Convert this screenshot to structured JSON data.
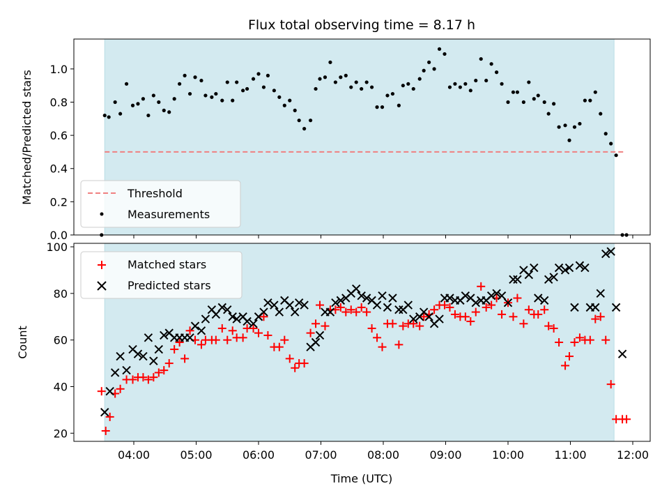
{
  "chart_data": {
    "title": "Flux total observing time = 8.17 h",
    "xlabel": "Time (UTC)",
    "x_ticks": [
      "04:00",
      "05:00",
      "06:00",
      "07:00",
      "08:00",
      "09:00",
      "10:00",
      "11:00",
      "12:00"
    ],
    "shaded_interval": {
      "start": "03:32",
      "end": "11:42",
      "color": "#d3eaf0"
    },
    "panels": [
      {
        "type": "scatter",
        "ylabel": "Matched/Predicted stars",
        "ylim": [
          0,
          1.18
        ],
        "y_ticks": [
          "0.0",
          "0.2",
          "0.4",
          "0.6",
          "0.8",
          "1.0"
        ],
        "legend_position": "lower-left",
        "series": [
          {
            "name": "Threshold",
            "kind": "dashed-line",
            "color": "#f08080",
            "y": 0.5,
            "x_range": [
              "03:32",
              "11:52"
            ]
          },
          {
            "name": "Measurements",
            "kind": "dots",
            "color": "#000000",
            "x": [
              "03:29",
              "03:32",
              "03:36",
              "03:42",
              "03:47",
              "03:53",
              "03:59",
              "04:04",
              "04:09",
              "04:14",
              "04:19",
              "04:24",
              "04:29",
              "04:34",
              "04:39",
              "04:44",
              "04:49",
              "04:54",
              "04:59",
              "05:05",
              "05:09",
              "05:15",
              "05:19",
              "05:25",
              "05:30",
              "05:35",
              "05:39",
              "05:45",
              "05:49",
              "05:55",
              "06:00",
              "06:05",
              "06:09",
              "06:15",
              "06:20",
              "06:25",
              "06:30",
              "06:35",
              "06:39",
              "06:44",
              "06:50",
              "06:55",
              "06:59",
              "07:04",
              "07:09",
              "07:14",
              "07:19",
              "07:24",
              "07:29",
              "07:34",
              "07:39",
              "07:44",
              "07:49",
              "07:54",
              "07:59",
              "08:04",
              "08:09",
              "08:15",
              "08:19",
              "08:24",
              "08:29",
              "08:35",
              "08:39",
              "08:44",
              "08:49",
              "08:54",
              "08:59",
              "09:04",
              "09:09",
              "09:14",
              "09:19",
              "09:24",
              "09:29",
              "09:34",
              "09:39",
              "09:44",
              "09:49",
              "09:54",
              "10:00",
              "10:05",
              "10:09",
              "10:15",
              "10:20",
              "10:25",
              "10:29",
              "10:35",
              "10:39",
              "10:44",
              "10:49",
              "10:55",
              "10:59",
              "11:04",
              "11:09",
              "11:14",
              "11:19",
              "11:24",
              "11:29",
              "11:34",
              "11:39",
              "11:44",
              "11:50",
              "11:54"
            ],
            "y": [
              0.0,
              0.72,
              0.71,
              0.8,
              0.73,
              0.91,
              0.78,
              0.79,
              0.82,
              0.72,
              0.84,
              0.8,
              0.75,
              0.74,
              0.82,
              0.91,
              0.96,
              0.85,
              0.95,
              0.93,
              0.84,
              0.83,
              0.85,
              0.81,
              0.92,
              0.81,
              0.92,
              0.87,
              0.88,
              0.94,
              0.97,
              0.89,
              0.96,
              0.87,
              0.83,
              0.78,
              0.81,
              0.75,
              0.69,
              0.64,
              0.69,
              0.88,
              0.94,
              0.95,
              1.04,
              0.92,
              0.95,
              0.96,
              0.89,
              0.92,
              0.88,
              0.92,
              0.89,
              0.77,
              0.77,
              0.84,
              0.85,
              0.78,
              0.9,
              0.91,
              0.88,
              0.94,
              0.99,
              1.04,
              1.0,
              1.12,
              1.09,
              0.89,
              0.91,
              0.89,
              0.91,
              0.87,
              0.93,
              1.06,
              0.93,
              1.03,
              0.98,
              0.91,
              0.8,
              0.86,
              0.86,
              0.8,
              0.92,
              0.82,
              0.84,
              0.8,
              0.73,
              0.79,
              0.65,
              0.66,
              0.57,
              0.65,
              0.67,
              0.81,
              0.81,
              0.86,
              0.73,
              0.61,
              0.55,
              0.48,
              0.0,
              0.0
            ]
          }
        ]
      },
      {
        "type": "scatter",
        "ylabel": "Count",
        "ylim": [
          16.5,
          101.5
        ],
        "y_ticks": [
          "20",
          "40",
          "60",
          "80",
          "100"
        ],
        "legend_position": "upper-left",
        "series": [
          {
            "name": "Matched stars",
            "marker": "plus",
            "color": "#ff0000",
            "x": [
              "03:29",
              "03:33",
              "03:37",
              "03:42",
              "03:47",
              "03:53",
              "03:59",
              "04:04",
              "04:09",
              "04:14",
              "04:19",
              "04:24",
              "04:29",
              "04:34",
              "04:39",
              "04:44",
              "04:49",
              "04:54",
              "04:59",
              "05:05",
              "05:09",
              "05:15",
              "05:19",
              "05:25",
              "05:30",
              "05:35",
              "05:39",
              "05:45",
              "05:49",
              "05:55",
              "06:00",
              "06:05",
              "06:09",
              "06:15",
              "06:20",
              "06:25",
              "06:30",
              "06:35",
              "06:39",
              "06:44",
              "06:50",
              "06:55",
              "06:59",
              "07:04",
              "07:09",
              "07:14",
              "07:19",
              "07:24",
              "07:29",
              "07:34",
              "07:39",
              "07:44",
              "07:49",
              "07:54",
              "07:59",
              "08:04",
              "08:09",
              "08:15",
              "08:19",
              "08:24",
              "08:29",
              "08:35",
              "08:39",
              "08:44",
              "08:49",
              "08:54",
              "08:59",
              "09:04",
              "09:09",
              "09:14",
              "09:19",
              "09:24",
              "09:29",
              "09:34",
              "09:39",
              "09:44",
              "09:49",
              "09:54",
              "10:00",
              "10:05",
              "10:09",
              "10:15",
              "10:20",
              "10:25",
              "10:29",
              "10:35",
              "10:39",
              "10:44",
              "10:49",
              "10:55",
              "10:59",
              "11:04",
              "11:09",
              "11:14",
              "11:19",
              "11:24",
              "11:29",
              "11:34",
              "11:39",
              "11:44",
              "11:50",
              "11:54"
            ],
            "y": [
              38,
              21,
              27,
              37,
              39,
              43,
              43,
              44,
              44,
              43,
              44,
              46,
              47,
              50,
              56,
              59,
              52,
              64,
              60,
              58,
              60,
              60,
              60,
              65,
              60,
              64,
              61,
              61,
              65,
              65,
              63,
              70,
              62,
              57,
              57,
              60,
              52,
              48,
              50,
              50,
              63,
              67,
              75,
              66,
              73,
              73,
              74,
              72,
              73,
              72,
              74,
              72,
              65,
              61,
              57,
              67,
              67,
              58,
              66,
              67,
              67,
              66,
              70,
              71,
              73,
              75,
              75,
              74,
              71,
              70,
              70,
              68,
              72,
              83,
              74,
              75,
              78,
              71,
              76,
              70,
              78,
              67,
              73,
              71,
              71,
              73,
              66,
              65,
              59,
              49,
              53,
              59,
              61,
              60,
              60,
              69,
              70,
              60,
              41,
              26,
              26,
              26
            ]
          },
          {
            "name": "Predicted stars",
            "marker": "x",
            "color": "#000000",
            "x": [
              "03:32",
              "03:37",
              "03:42",
              "03:47",
              "03:53",
              "03:59",
              "04:04",
              "04:09",
              "04:14",
              "04:19",
              "04:24",
              "04:29",
              "04:34",
              "04:39",
              "04:44",
              "04:49",
              "04:54",
              "04:59",
              "05:05",
              "05:09",
              "05:15",
              "05:19",
              "05:25",
              "05:30",
              "05:35",
              "05:39",
              "05:45",
              "05:49",
              "05:55",
              "06:00",
              "06:05",
              "06:09",
              "06:15",
              "06:20",
              "06:25",
              "06:30",
              "06:35",
              "06:39",
              "06:44",
              "06:50",
              "06:55",
              "06:59",
              "07:04",
              "07:09",
              "07:14",
              "07:19",
              "07:24",
              "07:29",
              "07:34",
              "07:39",
              "07:44",
              "07:49",
              "07:54",
              "07:59",
              "08:04",
              "08:09",
              "08:15",
              "08:19",
              "08:24",
              "08:29",
              "08:35",
              "08:39",
              "08:44",
              "08:49",
              "08:54",
              "08:59",
              "09:04",
              "09:09",
              "09:14",
              "09:19",
              "09:24",
              "09:29",
              "09:34",
              "09:39",
              "09:44",
              "09:49",
              "09:54",
              "10:00",
              "10:05",
              "10:09",
              "10:15",
              "10:20",
              "10:25",
              "10:29",
              "10:35",
              "10:39",
              "10:44",
              "10:49",
              "10:55",
              "10:59",
              "11:04",
              "11:09",
              "11:14",
              "11:19",
              "11:24",
              "11:29",
              "11:34",
              "11:39",
              "11:44",
              "11:50"
            ],
            "y": [
              29,
              38,
              46,
              53,
              47,
              56,
              54,
              53,
              61,
              51,
              56,
              62,
              63,
              61,
              61,
              61,
              61,
              66,
              64,
              69,
              73,
              71,
              74,
              73,
              70,
              69,
              70,
              68,
              67,
              70,
              72,
              76,
              75,
              72,
              77,
              75,
              72,
              76,
              75,
              57,
              59,
              62,
              72,
              72,
              76,
              77,
              78,
              80,
              82,
              79,
              78,
              77,
              75,
              79,
              74,
              78,
              73,
              73,
              75,
              69,
              70,
              72,
              70,
              67,
              69,
              78,
              78,
              77,
              77,
              79,
              78,
              76,
              77,
              77,
              79,
              80,
              79,
              76,
              86,
              86,
              90,
              88,
              91,
              78,
              77,
              86,
              87,
              91,
              90,
              91,
              74,
              92,
              91,
              74,
              74,
              80,
              97,
              98,
              74,
              54
            ]
          }
        ]
      }
    ]
  },
  "legend": {
    "threshold": "Threshold",
    "measurements": "Measurements",
    "matched": "Matched stars",
    "predicted": "Predicted stars"
  }
}
